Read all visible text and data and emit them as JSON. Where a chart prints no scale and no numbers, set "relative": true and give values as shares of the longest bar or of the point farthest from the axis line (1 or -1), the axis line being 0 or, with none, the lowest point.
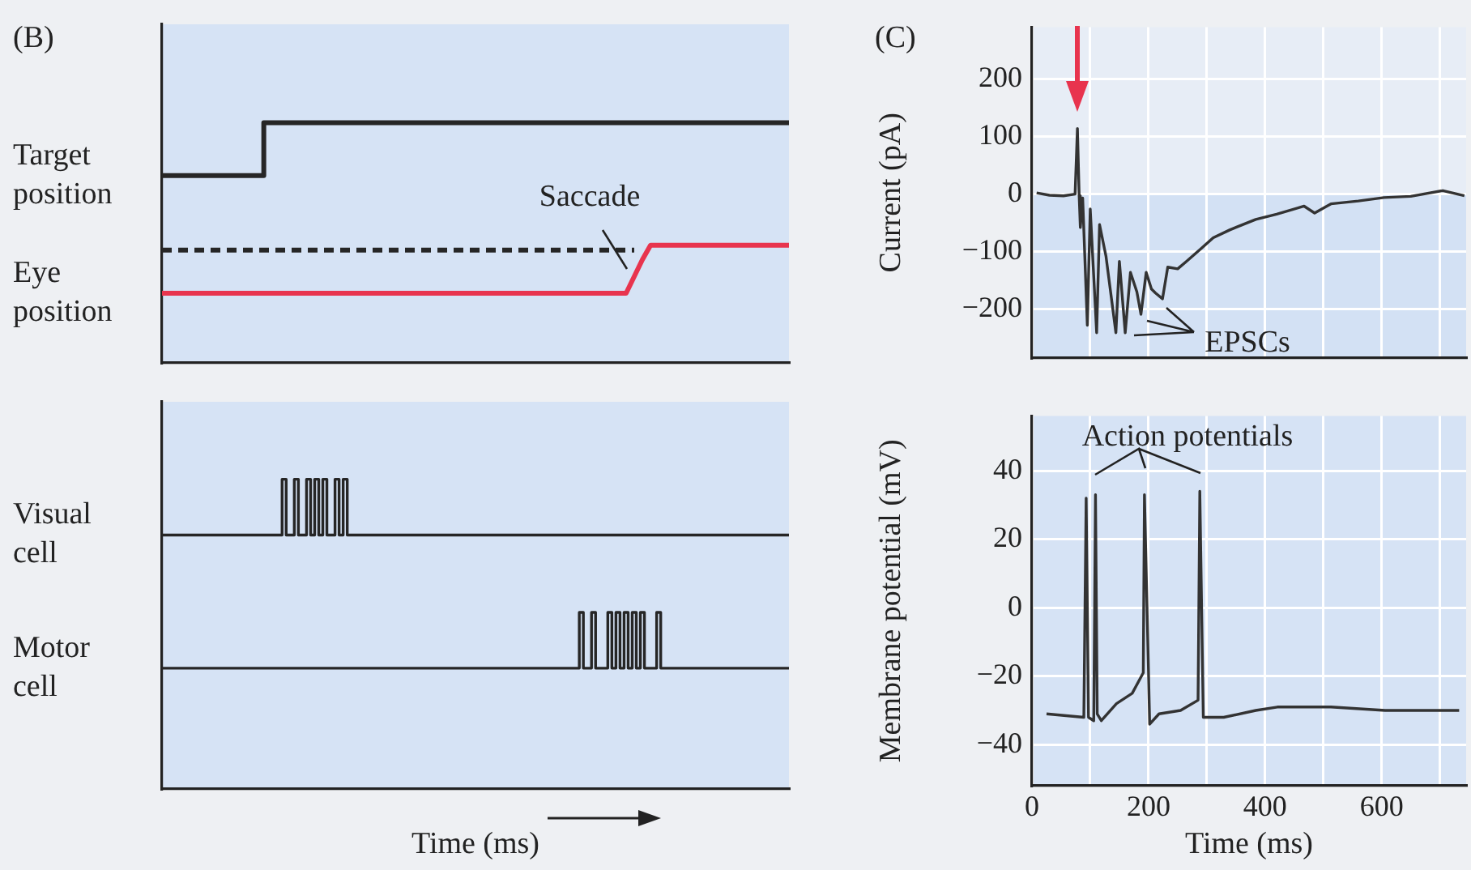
{
  "chart_data": [
    {
      "type": "line",
      "title": "(B)",
      "relative": true,
      "tick_labels": false,
      "marker": "none",
      "annotations": [
        "Saccade"
      ],
      "categories": [
        null,
        null,
        null,
        null,
        null,
        null,
        null,
        null,
        null,
        null,
        null,
        null,
        null,
        null,
        null,
        null,
        null,
        null,
        null,
        null,
        null,
        null,
        null,
        null,
        null,
        null,
        null,
        null,
        null,
        null,
        null,
        null,
        null,
        null,
        null,
        null,
        null,
        null,
        null,
        null,
        null,
        null,
        null,
        null,
        null,
        null,
        null,
        null,
        null,
        null,
        null,
        null,
        null,
        null,
        null,
        null,
        null,
        null,
        null,
        null,
        null,
        null,
        null,
        null,
        null,
        null,
        null,
        null,
        null,
        null,
        null,
        null,
        null,
        null,
        null,
        null,
        null,
        null
      ],
      "series": [
        {
          "name": "Target position",
          "type": "step",
          "color": "#262626",
          "values": [
            0.78,
            0.78,
            0.78,
            0.78,
            0.78,
            0.78,
            0.78,
            0.78,
            0.78,
            0.78,
            0.78,
            0.78,
            0.78,
            1,
            1,
            1,
            1,
            1,
            1,
            1,
            1,
            1,
            1,
            1,
            1,
            1,
            1,
            1,
            1,
            1,
            1,
            1,
            1,
            1,
            1,
            1,
            1,
            1,
            1,
            1,
            1,
            1,
            1,
            1,
            1,
            1,
            1,
            1,
            1,
            1,
            1,
            1,
            1,
            1,
            1,
            1,
            1,
            1,
            1,
            1,
            1,
            1,
            1,
            1,
            1,
            1,
            1,
            1,
            1,
            1,
            1,
            1,
            1,
            1,
            1,
            1,
            1,
            1
          ]
        },
        {
          "name": "Eye position",
          "type": "line",
          "color": "#e8344e",
          "values": [
            0.29,
            0.29,
            0.29,
            0.29,
            0.29,
            0.29,
            0.29,
            0.29,
            0.29,
            0.29,
            0.29,
            0.29,
            0.29,
            0.29,
            0.29,
            0.29,
            0.29,
            0.29,
            0.29,
            0.29,
            0.29,
            0.29,
            0.29,
            0.29,
            0.29,
            0.29,
            0.29,
            0.29,
            0.29,
            0.29,
            0.29,
            0.29,
            0.29,
            0.29,
            0.29,
            0.29,
            0.29,
            0.29,
            0.29,
            0.29,
            0.29,
            0.29,
            0.29,
            0.29,
            0.29,
            0.29,
            0.29,
            0.29,
            0.29,
            0.29,
            0.29,
            0.29,
            0.29,
            0.29,
            0.29,
            0.29,
            0.29,
            0.29,
            0.36,
            0.43,
            0.49,
            0.49,
            0.49,
            0.49,
            0.49,
            0.49,
            0.49,
            0.49,
            0.49,
            0.49,
            0.49,
            0.49,
            0.49,
            0.49,
            0.49,
            0.49,
            0.49,
            0.49
          ]
        },
        {
          "type": "line",
          "line_style": "dashed",
          "color": "#262626",
          "values": [
            0.47,
            0.47,
            0.47,
            0.47,
            0.47,
            0.47,
            0.47,
            0.47,
            0.47,
            0.47,
            0.47,
            0.47,
            0.47,
            0.47,
            0.47,
            0.47,
            0.47,
            0.47,
            0.47,
            0.47,
            0.47,
            0.47,
            0.47,
            0.47,
            0.47,
            0.47,
            0.47,
            0.47,
            0.47,
            0.47,
            0.47,
            0.47,
            0.47,
            0.47,
            0.47,
            0.47,
            0.47,
            0.47,
            0.47,
            0.47,
            0.47,
            0.47,
            0.47,
            0.47,
            0.47,
            0.47,
            0.47,
            0.47,
            0.47,
            0.47,
            0.47,
            0.47,
            0.47,
            0.47,
            0.47,
            0.47,
            0.47,
            0.47,
            0.47,
            null,
            null,
            null,
            null,
            null,
            null,
            null,
            null,
            null,
            null,
            null,
            null,
            null,
            null,
            null,
            null,
            null,
            null,
            null
          ]
        }
      ]
    },
    {
      "type": "step",
      "relative": true,
      "tick_labels": false,
      "marker": "none",
      "xlabel": "Time (ms)",
      "categories": [
        null,
        null,
        null,
        null,
        null,
        null,
        null,
        null,
        null,
        null,
        null,
        null,
        null,
        null,
        null,
        null,
        null,
        null,
        null,
        null,
        null,
        null,
        null,
        null,
        null,
        null,
        null,
        null,
        null,
        null,
        null,
        null,
        null,
        null,
        null,
        null,
        null,
        null,
        null,
        null,
        null,
        null,
        null,
        null,
        null,
        null,
        null,
        null,
        null,
        null,
        null,
        null,
        null,
        null,
        null,
        null,
        null,
        null,
        null,
        null,
        null,
        null,
        null,
        null,
        null,
        null,
        null,
        null,
        null,
        null,
        null,
        null,
        null,
        null,
        null,
        null,
        null,
        null,
        null,
        null,
        null,
        null,
        null,
        null,
        null,
        null,
        null,
        null,
        null,
        null,
        null,
        null,
        null,
        null,
        null,
        null,
        null,
        null,
        null,
        null,
        null,
        null,
        null,
        null,
        null,
        null,
        null,
        null,
        null,
        null,
        null,
        null,
        null,
        null,
        null,
        null,
        null,
        null,
        null,
        null,
        null,
        null,
        null,
        null,
        null,
        null,
        null,
        null,
        null,
        null,
        null,
        null,
        null,
        null,
        null,
        null,
        null,
        null,
        null,
        null,
        null,
        null,
        null,
        null,
        null,
        null,
        null,
        null,
        null,
        null,
        null,
        null,
        null,
        null,
        null
      ],
      "series": [
        {
          "name": "Visual cell",
          "color": "#262626",
          "values": [
            0.82,
            0.82,
            0.82,
            0.82,
            0.82,
            0.82,
            0.82,
            0.82,
            0.82,
            0.82,
            0.82,
            0.82,
            0.82,
            0.82,
            0.82,
            0.82,
            0.82,
            0.82,
            0.82,
            0.82,
            0.82,
            0.82,
            0.82,
            0.82,
            0.82,
            0.82,
            0.82,
            0.82,
            0.82,
            0.82,
            1,
            0.82,
            0.82,
            1,
            0.82,
            0.82,
            1,
            0.82,
            1,
            0.82,
            1,
            0.82,
            0.82,
            1,
            0.82,
            1,
            0.82,
            0.82,
            0.82,
            0.82,
            0.82,
            0.82,
            0.82,
            0.82,
            0.82,
            0.82,
            0.82,
            0.82,
            0.82,
            0.82,
            0.82,
            0.82,
            0.82,
            0.82,
            0.82,
            0.82,
            0.82,
            0.82,
            0.82,
            0.82,
            0.82,
            0.82,
            0.82,
            0.82,
            0.82,
            0.82,
            0.82,
            0.82,
            0.82,
            0.82,
            0.82,
            0.82,
            0.82,
            0.82,
            0.82,
            0.82,
            0.82,
            0.82,
            0.82,
            0.82,
            0.82,
            0.82,
            0.82,
            0.82,
            0.82,
            0.82,
            0.82,
            0.82,
            0.82,
            0.82,
            0.82,
            0.82,
            0.82,
            0.82,
            0.82,
            0.82,
            0.82,
            0.82,
            0.82,
            0.82,
            0.82,
            0.82,
            0.82,
            0.82,
            0.82,
            0.82,
            0.82,
            0.82,
            0.82,
            0.82,
            0.82,
            0.82,
            0.82,
            0.82,
            0.82,
            0.82,
            0.82,
            0.82,
            0.82,
            0.82,
            0.82,
            0.82,
            0.82,
            0.82,
            0.82,
            0.82,
            0.82,
            0.82,
            0.82,
            0.82,
            0.82,
            0.82,
            0.82,
            0.82,
            0.82,
            0.82,
            0.82,
            0.82,
            0.82,
            0.82,
            0.82,
            0.82,
            0.82,
            0.82,
            0.82
          ]
        },
        {
          "name": "Motor cell",
          "color": "#262626",
          "values": [
            0.39,
            0.39,
            0.39,
            0.39,
            0.39,
            0.39,
            0.39,
            0.39,
            0.39,
            0.39,
            0.39,
            0.39,
            0.39,
            0.39,
            0.39,
            0.39,
            0.39,
            0.39,
            0.39,
            0.39,
            0.39,
            0.39,
            0.39,
            0.39,
            0.39,
            0.39,
            0.39,
            0.39,
            0.39,
            0.39,
            0.39,
            0.39,
            0.39,
            0.39,
            0.39,
            0.39,
            0.39,
            0.39,
            0.39,
            0.39,
            0.39,
            0.39,
            0.39,
            0.39,
            0.39,
            0.39,
            0.39,
            0.39,
            0.39,
            0.39,
            0.39,
            0.39,
            0.39,
            0.39,
            0.39,
            0.39,
            0.39,
            0.39,
            0.39,
            0.39,
            0.39,
            0.39,
            0.39,
            0.39,
            0.39,
            0.39,
            0.39,
            0.39,
            0.39,
            0.39,
            0.39,
            0.39,
            0.39,
            0.39,
            0.39,
            0.39,
            0.39,
            0.39,
            0.39,
            0.39,
            0.39,
            0.39,
            0.39,
            0.39,
            0.39,
            0.39,
            0.39,
            0.39,
            0.39,
            0.39,
            0.39,
            0.39,
            0.39,
            0.39,
            0.39,
            0.39,
            0.39,
            0.39,
            0.39,
            0.39,
            0.39,
            0.39,
            0.39,
            0.57,
            0.39,
            0.39,
            0.57,
            0.39,
            0.39,
            0.39,
            0.57,
            0.39,
            0.57,
            0.39,
            0.57,
            0.39,
            0.57,
            0.39,
            0.57,
            0.39,
            0.39,
            0.39,
            0.57,
            0.39,
            0.39,
            0.39,
            0.39,
            0.39,
            0.39,
            0.39,
            0.39,
            0.39,
            0.39,
            0.39,
            0.39,
            0.39,
            0.39,
            0.39,
            0.39,
            0.39,
            0.39,
            0.39,
            0.39,
            0.39,
            0.39,
            0.39,
            0.39,
            0.39,
            0.39,
            0.39,
            0.39,
            0.39,
            0.39,
            0.39,
            0.39
          ]
        }
      ]
    },
    {
      "type": "line",
      "title": "(C)",
      "ylabel": "Current (pA)",
      "tick_labels": "y",
      "grid": true,
      "marker": "none",
      "annotations": [
        "EPSCs"
      ],
      "xlim": [
        0,
        745
      ],
      "xticks": [
        0,
        {
          "value": 100,
          "label": null
        },
        200,
        {
          "value": 300,
          "label": null
        },
        400,
        {
          "value": 500,
          "label": null
        },
        600,
        {
          "value": 700,
          "label": null
        }
      ],
      "ylim": [
        -285,
        290
      ],
      "yticks": [
        200,
        100,
        0,
        {
          "value": -100,
          "label": "−100"
        },
        {
          "value": -200,
          "label": "−200"
        }
      ],
      "bands": [
        {
          "axis": "y",
          "from": -285,
          "to": 0,
          "color": "#d3e1f4"
        }
      ],
      "x": [
        8,
        30,
        54,
        74,
        78,
        81,
        83,
        87,
        95,
        100,
        111,
        116,
        127,
        144,
        150,
        160,
        169,
        180,
        187,
        196,
        205,
        212,
        224,
        233,
        250,
        265,
        290,
        311,
        340,
        384,
        420,
        467,
        485,
        513,
        560,
        604,
        650,
        705,
        742
      ],
      "series": [
        {
          "color": "#333333",
          "values": [
            2,
            -2,
            -3,
            0,
            114,
            -3,
            -58,
            -7,
            -228,
            -26,
            -241,
            -53,
            -108,
            -241,
            -117,
            -241,
            -136,
            -170,
            -209,
            -136,
            -165,
            -172,
            -182,
            -127,
            -130,
            -117,
            -95,
            -76,
            -62,
            -44,
            -35,
            -21,
            -33,
            -17,
            -12,
            -6,
            -4,
            6,
            -3
          ]
        }
      ]
    },
    {
      "type": "line",
      "ylabel": "Membrane potential (mV)",
      "xlabel": "Time (ms)",
      "grid": true,
      "marker": "none",
      "annotations": [
        "Action potentials"
      ],
      "xlim": [
        0,
        745
      ],
      "xticks": [
        0,
        {
          "value": 100,
          "label": null
        },
        200,
        {
          "value": 300,
          "label": null
        },
        400,
        {
          "value": 500,
          "label": null
        },
        600,
        {
          "value": 700,
          "label": null
        }
      ],
      "ylim": [
        -52,
        56
      ],
      "yticks": [
        {
          "value": -40,
          "label": "−40"
        },
        {
          "value": -20,
          "label": "−20"
        },
        0,
        20,
        40
      ],
      "x": [
        25,
        89,
        93,
        97,
        106,
        109,
        112,
        119,
        145,
        172,
        191,
        193,
        202,
        218,
        255,
        285,
        288,
        294,
        329,
        384,
        421,
        513,
        606,
        733
      ],
      "series": [
        {
          "color": "#333333",
          "values": [
            -31,
            -32,
            32,
            -32,
            -33,
            33,
            -31,
            -33,
            -28,
            -25,
            -19,
            33,
            -34,
            -31,
            -30,
            -27,
            34,
            -32,
            -32,
            -30,
            -29,
            -29,
            -30,
            -30
          ]
        }
      ]
    }
  ]
}
